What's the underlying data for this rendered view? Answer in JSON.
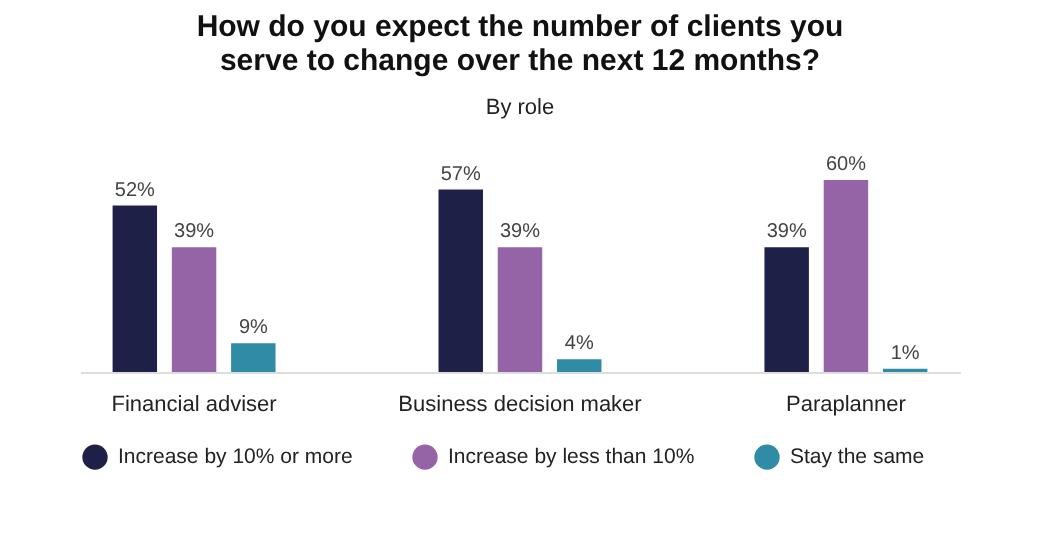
{
  "chart_data": {
    "type": "bar",
    "title": "How do you expect the number of clients you serve to change over the next 12 months?",
    "subtitle": "By role",
    "categories": [
      "Financial adviser",
      "Business decision maker",
      "Paraplanner"
    ],
    "series": [
      {
        "name": "Increase by 10% or more",
        "color": "#1e2048",
        "values": [
          52,
          57,
          39
        ],
        "value_labels": [
          "52%",
          "57%",
          "39%"
        ]
      },
      {
        "name": "Increase by less than 10%",
        "color": "#9464a6",
        "values": [
          39,
          39,
          60
        ],
        "value_labels": [
          "39%",
          "39%",
          "60%"
        ]
      },
      {
        "name": "Stay the same",
        "color": "#2f8ba6",
        "values": [
          9,
          4,
          1
        ],
        "value_labels": [
          "9%",
          "4%",
          "1%"
        ]
      }
    ],
    "legend": "bottom"
  }
}
